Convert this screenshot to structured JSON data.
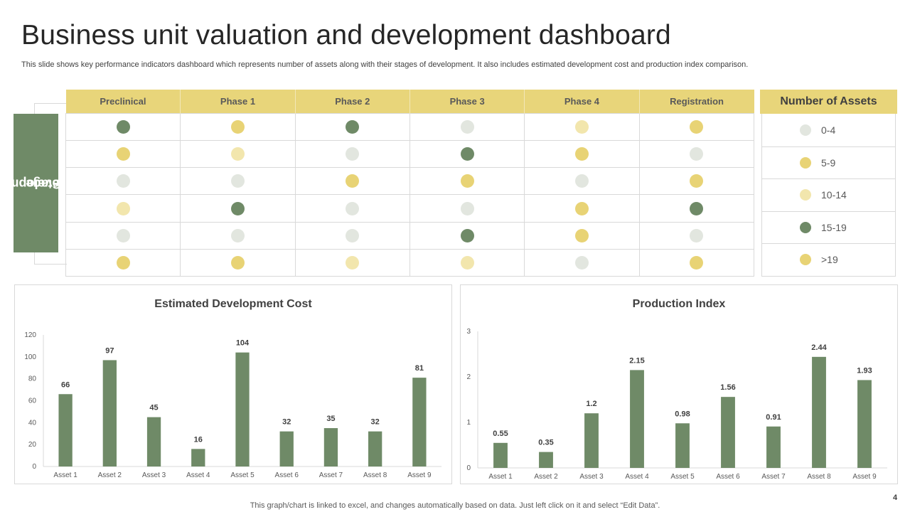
{
  "title": "Business unit valuation and development dashboard",
  "subtitle": "This slide shows key performance indicators dashboard which represents number of assets along with their stages of development. It also includes estimated development cost and production index comparison.",
  "stage_label": [
    "Development",
    "Stage"
  ],
  "matrix": {
    "headers": [
      "Preclinical",
      "Phase 1",
      "Phase 2",
      "Phase 3",
      "Phase 4",
      "Registration"
    ],
    "rows": [
      [
        "15-19",
        "5-9",
        "15-19",
        "0-4",
        "10-14",
        "5-9"
      ],
      [
        "5-9",
        "10-14",
        "0-4",
        "15-19",
        "5-9",
        "0-4"
      ],
      [
        "0-4",
        "0-4",
        "5-9",
        "5-9",
        "0-4",
        "5-9"
      ],
      [
        "10-14",
        "15-19",
        "0-4",
        "0-4",
        "5-9",
        "15-19"
      ],
      [
        "0-4",
        "0-4",
        "0-4",
        "15-19",
        "5-9",
        "0-4"
      ],
      [
        "5-9",
        "5-9",
        "10-14",
        "10-14",
        "0-4",
        "5-9"
      ]
    ]
  },
  "legend": {
    "title": "Number of Assets",
    "items": [
      {
        "label": "0-4",
        "color": "#e2e6df"
      },
      {
        "label": "5-9",
        "color": "#e8d375"
      },
      {
        "label": "10-14",
        "color": "#f2e6ad"
      },
      {
        "label": "15-19",
        "color": "#6f8a67"
      },
      {
        "label": ">19",
        "color": "#e8d375"
      }
    ]
  },
  "chart_data": [
    {
      "type": "bar",
      "title": "Estimated Development Cost",
      "categories": [
        "Asset 1",
        "Asset 2",
        "Asset 3",
        "Asset 4",
        "Asset 5",
        "Asset 6",
        "Asset 7",
        "Asset 8",
        "Asset 9"
      ],
      "values": [
        66,
        97,
        45,
        16,
        104,
        32,
        35,
        32,
        81
      ],
      "ylim": [
        0,
        120
      ],
      "yticks": [
        0,
        20,
        40,
        60,
        80,
        100,
        120
      ],
      "xlabel": "",
      "ylabel": "",
      "color": "#6f8a67"
    },
    {
      "type": "bar",
      "title": "Production Index",
      "categories": [
        "Asset 1",
        "Asset 2",
        "Asset 3",
        "Asset 4",
        "Asset 5",
        "Asset 6",
        "Asset 7",
        "Asset 8",
        "Asset 9"
      ],
      "values": [
        0.55,
        0.35,
        1.2,
        2.15,
        0.98,
        1.56,
        0.91,
        2.44,
        1.93
      ],
      "ylim": [
        0,
        3
      ],
      "yticks": [
        0,
        1,
        2,
        3
      ],
      "xlabel": "",
      "ylabel": "",
      "color": "#6f8a67"
    }
  ],
  "page_number": "4",
  "footer": "This graph/chart is linked to excel, and changes automatically based on data. Just left click on it and select “Edit Data”."
}
